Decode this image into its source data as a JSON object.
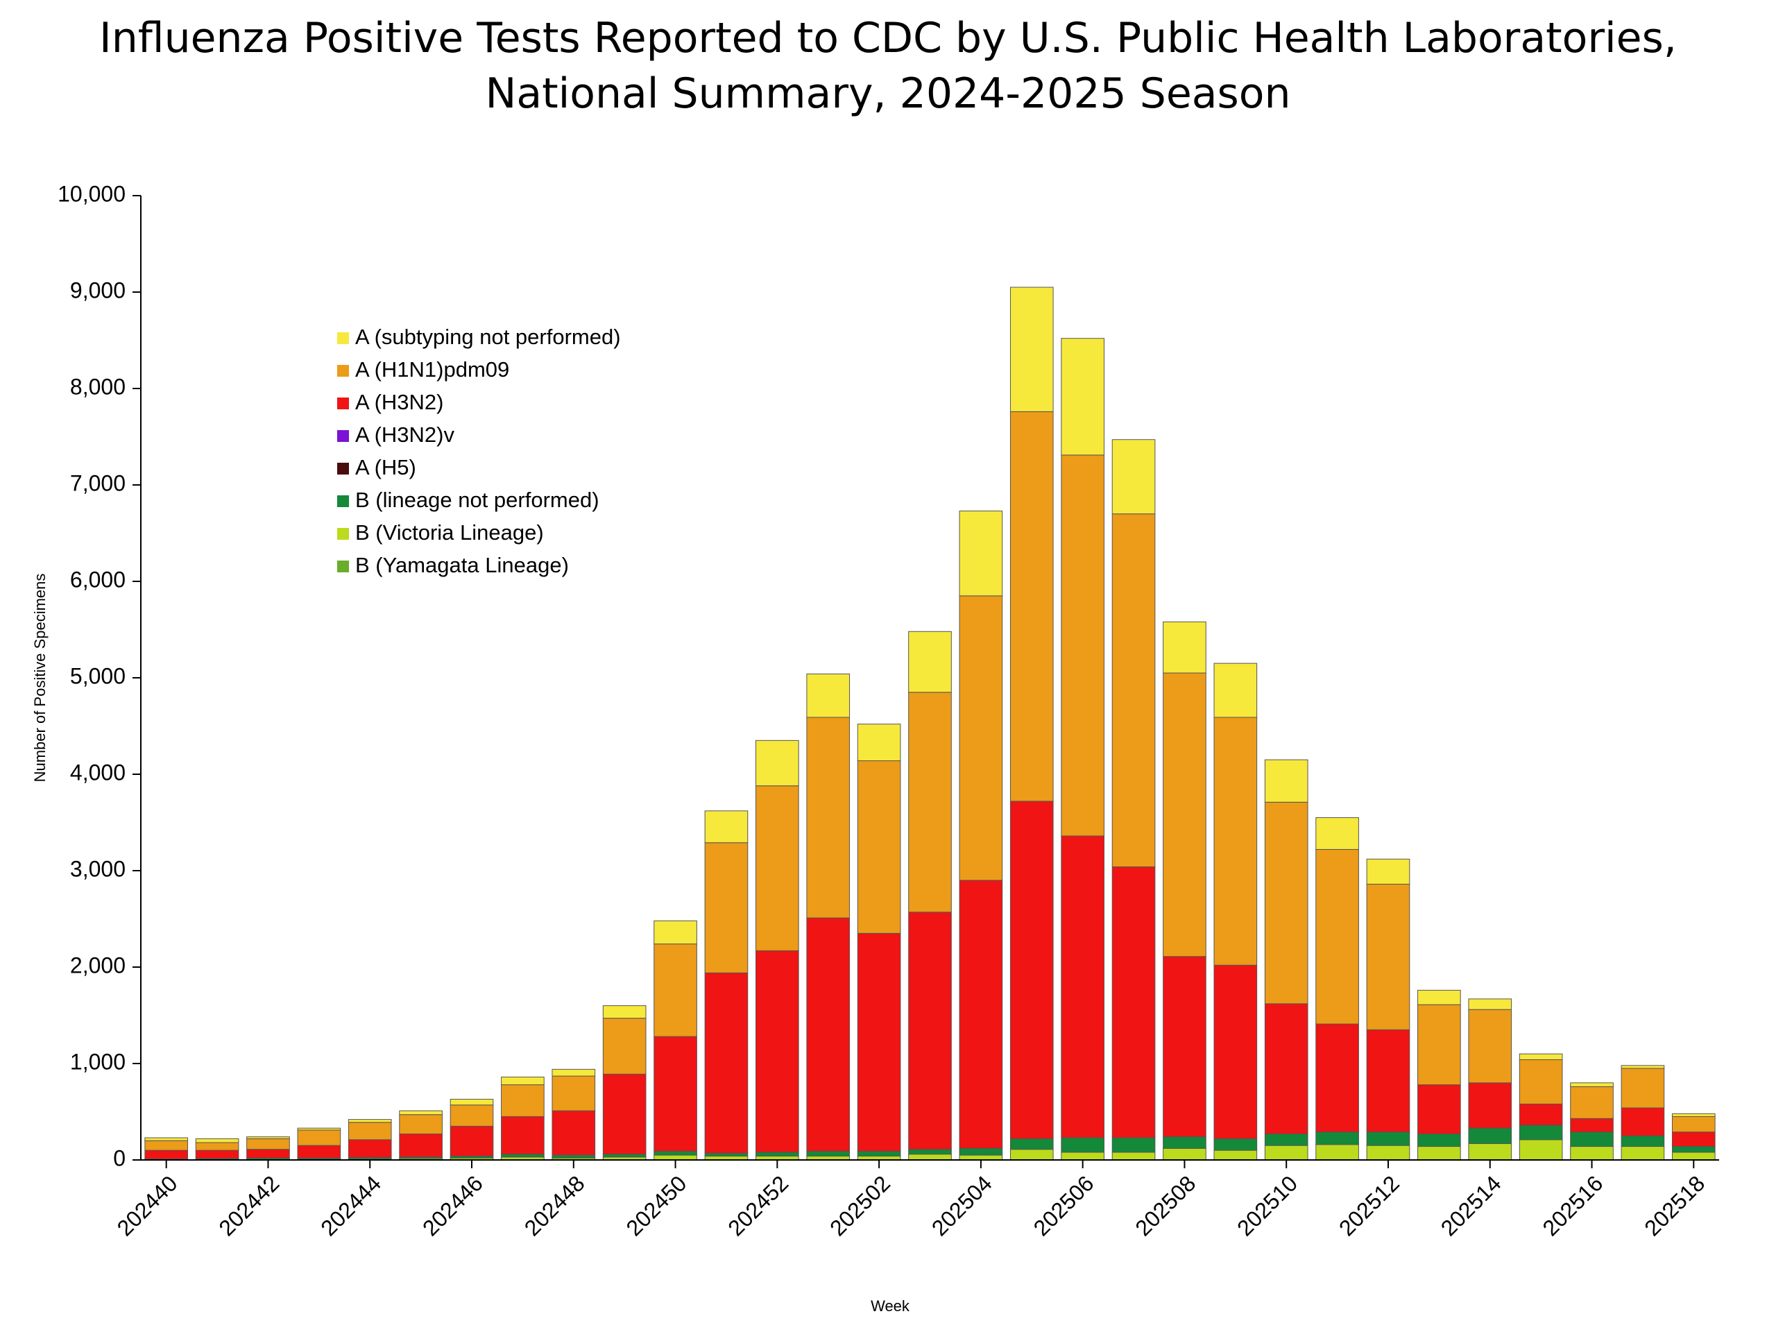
{
  "chart_data": {
    "type": "stacked_bar",
    "title": "Influenza Positive Tests Reported to CDC by U.S. Public Health Laboratories,",
    "subtitle": "National Summary, 2024-2025 Season",
    "x_label": "Week",
    "y_label": "Number of Positive Specimens",
    "categories": [
      "202440",
      null,
      "202442",
      null,
      "202444",
      null,
      "202446",
      null,
      "202448",
      null,
      "202450",
      null,
      "202452",
      null,
      "202502",
      null,
      "202504",
      null,
      "202506",
      null,
      "202508",
      null,
      "202510",
      null,
      "202512",
      null,
      "202514",
      null,
      "202516",
      null,
      "202518"
    ],
    "ylim": [
      0,
      10000
    ],
    "yticks": [
      0,
      {
        "value": 1000,
        "label": "1,000"
      },
      {
        "value": 2000,
        "label": "2,000"
      },
      {
        "value": 3000,
        "label": "3,000"
      },
      {
        "value": 4000,
        "label": "4,000"
      },
      {
        "value": 5000,
        "label": "5,000"
      },
      {
        "value": 6000,
        "label": "6,000"
      },
      {
        "value": 7000,
        "label": "7,000"
      },
      {
        "value": 8000,
        "label": "8,000"
      },
      {
        "value": 9000,
        "label": "9,000"
      },
      {
        "value": 10000,
        "label": "10,000"
      }
    ],
    "grid": false,
    "series": [
      {
        "name": "A (subtyping not performed)",
        "color": "#f7e83c",
        "values": [
          30,
          40,
          20,
          20,
          30,
          40,
          60,
          80,
          70,
          130,
          240,
          330,
          470,
          450,
          380,
          630,
          880,
          1290,
          1210,
          770,
          530,
          560,
          440,
          330,
          260,
          150,
          110,
          60,
          40,
          30,
          30
        ]
      },
      {
        "name": "A (H1N1)pdm09",
        "color": "#ec9c18",
        "values": [
          100,
          80,
          110,
          160,
          180,
          200,
          220,
          330,
          360,
          580,
          960,
          1350,
          1710,
          2080,
          1790,
          2280,
          2950,
          4040,
          3950,
          3660,
          2940,
          2570,
          2090,
          1810,
          1510,
          830,
          760,
          460,
          330,
          410,
          160
        ]
      },
      {
        "name": "A (H3N2)",
        "color": "#f01414",
        "values": [
          90,
          85,
          90,
          130,
          185,
          240,
          310,
          390,
          460,
          830,
          1190,
          1870,
          2090,
          2420,
          2260,
          2460,
          2780,
          3500,
          3130,
          2810,
          1870,
          1800,
          1350,
          1120,
          1060,
          510,
          470,
          220,
          140,
          290,
          150
        ]
      },
      {
        "name": "A (H3N2)v",
        "color": "#7b12d6",
        "values": [
          0,
          0,
          0,
          0,
          0,
          0,
          0,
          0,
          0,
          0,
          0,
          0,
          0,
          0,
          0,
          0,
          0,
          0,
          0,
          0,
          0,
          0,
          0,
          0,
          0,
          0,
          0,
          0,
          0,
          0,
          0
        ]
      },
      {
        "name": "A (H5)",
        "color": "#4a0c0c",
        "values": [
          0,
          0,
          0,
          0,
          0,
          0,
          0,
          0,
          0,
          0,
          0,
          0,
          0,
          0,
          0,
          0,
          0,
          0,
          0,
          0,
          0,
          0,
          0,
          0,
          0,
          0,
          0,
          0,
          0,
          0,
          0
        ]
      },
      {
        "name": "B (lineage not performed)",
        "color": "#14893a",
        "values": [
          5,
          10,
          15,
          10,
          15,
          15,
          20,
          30,
          30,
          30,
          40,
          30,
          40,
          50,
          50,
          50,
          70,
          110,
          150,
          150,
          120,
          120,
          120,
          130,
          140,
          130,
          160,
          150,
          150,
          110,
          60
        ]
      },
      {
        "name": "B (Victoria Lineage)",
        "color": "#bcdb1c",
        "values": [
          5,
          5,
          5,
          10,
          10,
          15,
          20,
          30,
          20,
          30,
          50,
          40,
          40,
          40,
          40,
          60,
          50,
          110,
          80,
          80,
          120,
          100,
          150,
          160,
          150,
          140,
          170,
          210,
          140,
          140,
          80
        ]
      },
      {
        "name": "B (Yamagata Lineage)",
        "color": "#6aad2a",
        "values": [
          0,
          0,
          0,
          0,
          0,
          0,
          0,
          0,
          0,
          0,
          0,
          0,
          0,
          0,
          0,
          0,
          0,
          0,
          0,
          0,
          0,
          0,
          0,
          0,
          0,
          0,
          0,
          0,
          0,
          0,
          0
        ]
      }
    ]
  }
}
